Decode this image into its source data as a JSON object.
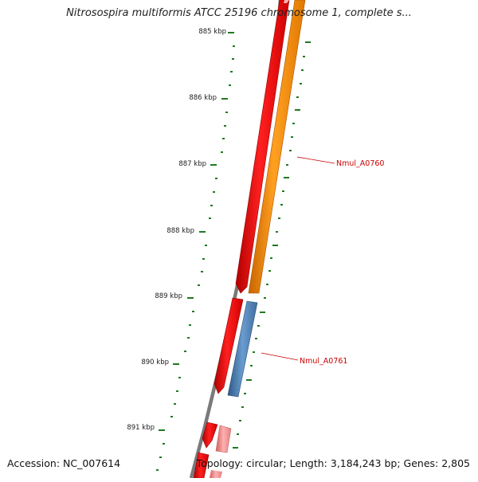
{
  "title": "Nitrosospira multiformis ATCC 25196 chromosome 1, complete s...",
  "footer": {
    "accession": "Accession: NC_007614",
    "topology": "Topology: circular; Length: 3,184,243 bp; Genes: 2,805"
  },
  "ruler": {
    "ticks": [
      "885 kbp",
      "886 kbp",
      "887 kbp",
      "888 kbp",
      "889 kbp",
      "890 kbp",
      "891 kbp"
    ]
  },
  "gene_labels": {
    "gene_a": "Nmul_A0760",
    "gene_b": "Nmul_A0761"
  },
  "colors": {
    "cds_red": "#ff0000",
    "cds_orange": "#ff8c00",
    "cds_blue": "#4f7fb0",
    "cds_pink": "#f08080",
    "backbone": "#777777",
    "tick_green": "#1f7a1f",
    "label_red": "#cc0000"
  }
}
